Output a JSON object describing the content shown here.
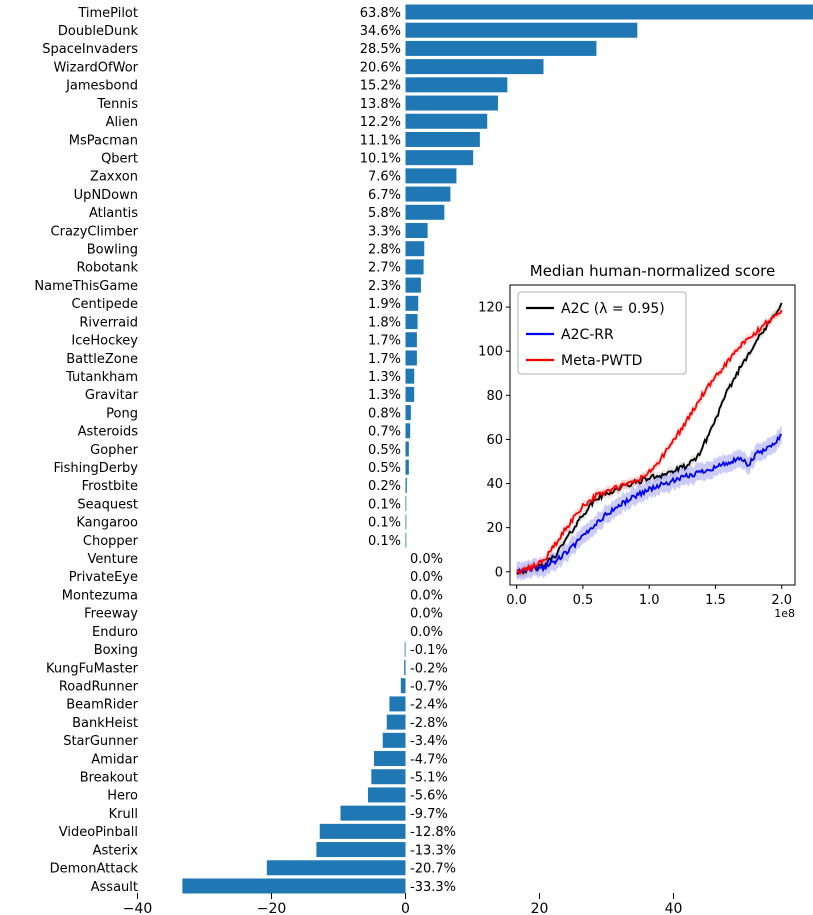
{
  "figure": {
    "background": "#ffffff"
  },
  "chart_data": [
    {
      "id": "bar_chart",
      "type": "bar",
      "orientation": "horizontal",
      "bar_color": "#1f77b4",
      "xlim": [
        -40,
        61
      ],
      "xticks": [
        -40,
        -20,
        0,
        20,
        40
      ],
      "xtick_labels": [
        "−40",
        "−20",
        "0",
        "20",
        "40"
      ],
      "categories": [
        "TimePilot",
        "DoubleDunk",
        "SpaceInvaders",
        "WizardOfWor",
        "Jamesbond",
        "Tennis",
        "Alien",
        "MsPacman",
        "Qbert",
        "Zaxxon",
        "UpNDown",
        "Atlantis",
        "CrazyClimber",
        "Bowling",
        "Robotank",
        "NameThisGame",
        "Centipede",
        "Riverraid",
        "IceHockey",
        "BattleZone",
        "Tutankham",
        "Gravitar",
        "Pong",
        "Asteroids",
        "Gopher",
        "FishingDerby",
        "Frostbite",
        "Seaquest",
        "Kangaroo",
        "Chopper",
        "Venture",
        "PrivateEye",
        "Montezuma",
        "Freeway",
        "Enduro",
        "Boxing",
        "KungFuMaster",
        "RoadRunner",
        "BeamRider",
        "BankHeist",
        "StarGunner",
        "Amidar",
        "Breakout",
        "Hero",
        "Krull",
        "VideoPinball",
        "Asterix",
        "DemonAttack",
        "Assault"
      ],
      "values": [
        63.8,
        34.6,
        28.5,
        20.6,
        15.2,
        13.8,
        12.2,
        11.1,
        10.1,
        7.6,
        6.7,
        5.8,
        3.3,
        2.8,
        2.7,
        2.3,
        1.9,
        1.8,
        1.7,
        1.7,
        1.3,
        1.3,
        0.8,
        0.7,
        0.5,
        0.5,
        0.2,
        0.1,
        0.1,
        0.1,
        0.0,
        0.0,
        0.0,
        0.0,
        0.0,
        -0.1,
        -0.2,
        -0.7,
        -2.4,
        -2.8,
        -3.4,
        -4.7,
        -5.1,
        -5.6,
        -9.7,
        -12.8,
        -13.3,
        -20.7,
        -33.3
      ],
      "value_labels": [
        "63.8%",
        "34.6%",
        "28.5%",
        "20.6%",
        "15.2%",
        "13.8%",
        "12.2%",
        "11.1%",
        "10.1%",
        "7.6%",
        "6.7%",
        "5.8%",
        "3.3%",
        "2.8%",
        "2.7%",
        "2.3%",
        "1.9%",
        "1.8%",
        "1.7%",
        "1.7%",
        "1.3%",
        "1.3%",
        "0.8%",
        "0.7%",
        "0.5%",
        "0.5%",
        "0.2%",
        "0.1%",
        "0.1%",
        "0.1%",
        "0.0%",
        "0.0%",
        "0.0%",
        "0.0%",
        "0.0%",
        "-0.1%",
        "-0.2%",
        "-0.7%",
        "-2.4%",
        "-2.8%",
        "-3.4%",
        "-4.7%",
        "-5.1%",
        "-5.6%",
        "-9.7%",
        "-12.8%",
        "-13.3%",
        "-20.7%",
        "-33.3%"
      ]
    },
    {
      "id": "inset_line_chart",
      "type": "line",
      "title": "Median human-normalized score",
      "x_scale_note": "1e8",
      "xlim": [
        0,
        2.05
      ],
      "ylim": [
        -6,
        130
      ],
      "xticks": [
        0.0,
        0.5,
        1.0,
        1.5,
        2.0
      ],
      "xtick_labels": [
        "0.0",
        "0.5",
        "1.0",
        "1.5",
        "2.0"
      ],
      "yticks": [
        0,
        20,
        40,
        60,
        80,
        100,
        120
      ],
      "ytick_labels": [
        "0",
        "20",
        "40",
        "60",
        "80",
        "100",
        "120"
      ],
      "legend_position": "upper left",
      "series": [
        {
          "name": "A2C (λ = 0.95)",
          "color": "#000000",
          "band": 2,
          "band_opacity": 0.1,
          "x": [
            0,
            0.1,
            0.2,
            0.3,
            0.4,
            0.5,
            0.6,
            0.7,
            0.8,
            0.9,
            1.0,
            1.1,
            1.2,
            1.3,
            1.35,
            1.4,
            1.5,
            1.6,
            1.7,
            1.8,
            1.9,
            1.95,
            2.0
          ],
          "y": [
            0,
            1,
            2.5,
            8,
            17,
            26,
            33,
            36,
            38.5,
            40.5,
            42.5,
            44,
            46,
            48.5,
            51,
            56,
            69,
            83,
            94,
            104,
            112,
            117,
            122
          ]
        },
        {
          "name": "A2C-RR",
          "color": "#0000ee",
          "band": 4,
          "band_opacity": 0.2,
          "x": [
            0,
            0.1,
            0.2,
            0.3,
            0.4,
            0.5,
            0.6,
            0.7,
            0.8,
            0.9,
            1.0,
            1.1,
            1.2,
            1.3,
            1.4,
            1.5,
            1.6,
            1.7,
            1.75,
            1.8,
            1.9,
            2.0
          ],
          "y": [
            0,
            1,
            2,
            5,
            10,
            16,
            22,
            27,
            31,
            34.5,
            37.5,
            39.5,
            41.5,
            43.5,
            45.5,
            47.5,
            49.5,
            51,
            48,
            53,
            56,
            62
          ]
        },
        {
          "name": "Meta-PWTD",
          "color": "#ff0000",
          "band": 2,
          "band_opacity": 0.13,
          "x": [
            0,
            0.1,
            0.2,
            0.3,
            0.4,
            0.5,
            0.6,
            0.7,
            0.8,
            0.9,
            1.0,
            1.1,
            1.2,
            1.3,
            1.4,
            1.5,
            1.6,
            1.7,
            1.8,
            1.9,
            2.0
          ],
          "y": [
            0,
            1.5,
            5,
            13,
            22,
            30,
            34.5,
            37,
            39,
            41,
            45,
            52,
            61,
            70,
            80,
            88,
            96,
            103,
            108,
            114,
            118
          ]
        }
      ]
    }
  ]
}
